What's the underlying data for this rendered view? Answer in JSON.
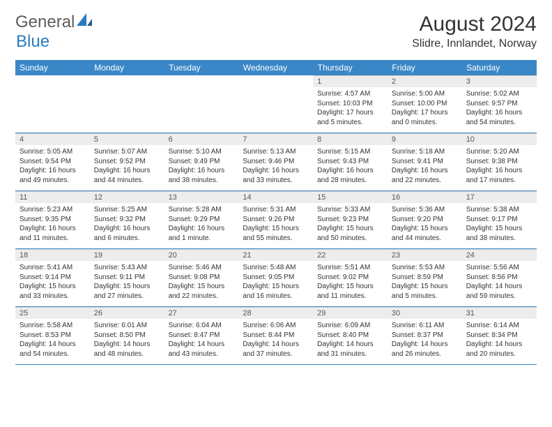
{
  "brand": {
    "general": "General",
    "blue": "Blue"
  },
  "title": "August 2024",
  "location": "Slidre, Innlandet, Norway",
  "colors": {
    "header_bg": "#3a87c7",
    "header_text": "#ffffff",
    "daynum_bg": "#ededed",
    "rule": "#3a87c7",
    "logo_gray": "#5c5c5c",
    "logo_blue": "#2b7bbf",
    "page_bg": "#ffffff"
  },
  "day_headers": [
    "Sunday",
    "Monday",
    "Tuesday",
    "Wednesday",
    "Thursday",
    "Friday",
    "Saturday"
  ],
  "weeks": [
    [
      null,
      null,
      null,
      null,
      {
        "n": "1",
        "sr": "Sunrise: 4:57 AM",
        "ss": "Sunset: 10:03 PM",
        "dl": "Daylight: 17 hours and 5 minutes."
      },
      {
        "n": "2",
        "sr": "Sunrise: 5:00 AM",
        "ss": "Sunset: 10:00 PM",
        "dl": "Daylight: 17 hours and 0 minutes."
      },
      {
        "n": "3",
        "sr": "Sunrise: 5:02 AM",
        "ss": "Sunset: 9:57 PM",
        "dl": "Daylight: 16 hours and 54 minutes."
      }
    ],
    [
      {
        "n": "4",
        "sr": "Sunrise: 5:05 AM",
        "ss": "Sunset: 9:54 PM",
        "dl": "Daylight: 16 hours and 49 minutes."
      },
      {
        "n": "5",
        "sr": "Sunrise: 5:07 AM",
        "ss": "Sunset: 9:52 PM",
        "dl": "Daylight: 16 hours and 44 minutes."
      },
      {
        "n": "6",
        "sr": "Sunrise: 5:10 AM",
        "ss": "Sunset: 9:49 PM",
        "dl": "Daylight: 16 hours and 38 minutes."
      },
      {
        "n": "7",
        "sr": "Sunrise: 5:13 AM",
        "ss": "Sunset: 9:46 PM",
        "dl": "Daylight: 16 hours and 33 minutes."
      },
      {
        "n": "8",
        "sr": "Sunrise: 5:15 AM",
        "ss": "Sunset: 9:43 PM",
        "dl": "Daylight: 16 hours and 28 minutes."
      },
      {
        "n": "9",
        "sr": "Sunrise: 5:18 AM",
        "ss": "Sunset: 9:41 PM",
        "dl": "Daylight: 16 hours and 22 minutes."
      },
      {
        "n": "10",
        "sr": "Sunrise: 5:20 AM",
        "ss": "Sunset: 9:38 PM",
        "dl": "Daylight: 16 hours and 17 minutes."
      }
    ],
    [
      {
        "n": "11",
        "sr": "Sunrise: 5:23 AM",
        "ss": "Sunset: 9:35 PM",
        "dl": "Daylight: 16 hours and 11 minutes."
      },
      {
        "n": "12",
        "sr": "Sunrise: 5:25 AM",
        "ss": "Sunset: 9:32 PM",
        "dl": "Daylight: 16 hours and 6 minutes."
      },
      {
        "n": "13",
        "sr": "Sunrise: 5:28 AM",
        "ss": "Sunset: 9:29 PM",
        "dl": "Daylight: 16 hours and 1 minute."
      },
      {
        "n": "14",
        "sr": "Sunrise: 5:31 AM",
        "ss": "Sunset: 9:26 PM",
        "dl": "Daylight: 15 hours and 55 minutes."
      },
      {
        "n": "15",
        "sr": "Sunrise: 5:33 AM",
        "ss": "Sunset: 9:23 PM",
        "dl": "Daylight: 15 hours and 50 minutes."
      },
      {
        "n": "16",
        "sr": "Sunrise: 5:36 AM",
        "ss": "Sunset: 9:20 PM",
        "dl": "Daylight: 15 hours and 44 minutes."
      },
      {
        "n": "17",
        "sr": "Sunrise: 5:38 AM",
        "ss": "Sunset: 9:17 PM",
        "dl": "Daylight: 15 hours and 38 minutes."
      }
    ],
    [
      {
        "n": "18",
        "sr": "Sunrise: 5:41 AM",
        "ss": "Sunset: 9:14 PM",
        "dl": "Daylight: 15 hours and 33 minutes."
      },
      {
        "n": "19",
        "sr": "Sunrise: 5:43 AM",
        "ss": "Sunset: 9:11 PM",
        "dl": "Daylight: 15 hours and 27 minutes."
      },
      {
        "n": "20",
        "sr": "Sunrise: 5:46 AM",
        "ss": "Sunset: 9:08 PM",
        "dl": "Daylight: 15 hours and 22 minutes."
      },
      {
        "n": "21",
        "sr": "Sunrise: 5:48 AM",
        "ss": "Sunset: 9:05 PM",
        "dl": "Daylight: 15 hours and 16 minutes."
      },
      {
        "n": "22",
        "sr": "Sunrise: 5:51 AM",
        "ss": "Sunset: 9:02 PM",
        "dl": "Daylight: 15 hours and 11 minutes."
      },
      {
        "n": "23",
        "sr": "Sunrise: 5:53 AM",
        "ss": "Sunset: 8:59 PM",
        "dl": "Daylight: 15 hours and 5 minutes."
      },
      {
        "n": "24",
        "sr": "Sunrise: 5:56 AM",
        "ss": "Sunset: 8:56 PM",
        "dl": "Daylight: 14 hours and 59 minutes."
      }
    ],
    [
      {
        "n": "25",
        "sr": "Sunrise: 5:58 AM",
        "ss": "Sunset: 8:53 PM",
        "dl": "Daylight: 14 hours and 54 minutes."
      },
      {
        "n": "26",
        "sr": "Sunrise: 6:01 AM",
        "ss": "Sunset: 8:50 PM",
        "dl": "Daylight: 14 hours and 48 minutes."
      },
      {
        "n": "27",
        "sr": "Sunrise: 6:04 AM",
        "ss": "Sunset: 8:47 PM",
        "dl": "Daylight: 14 hours and 43 minutes."
      },
      {
        "n": "28",
        "sr": "Sunrise: 6:06 AM",
        "ss": "Sunset: 8:44 PM",
        "dl": "Daylight: 14 hours and 37 minutes."
      },
      {
        "n": "29",
        "sr": "Sunrise: 6:09 AM",
        "ss": "Sunset: 8:40 PM",
        "dl": "Daylight: 14 hours and 31 minutes."
      },
      {
        "n": "30",
        "sr": "Sunrise: 6:11 AM",
        "ss": "Sunset: 8:37 PM",
        "dl": "Daylight: 14 hours and 26 minutes."
      },
      {
        "n": "31",
        "sr": "Sunrise: 6:14 AM",
        "ss": "Sunset: 8:34 PM",
        "dl": "Daylight: 14 hours and 20 minutes."
      }
    ]
  ]
}
